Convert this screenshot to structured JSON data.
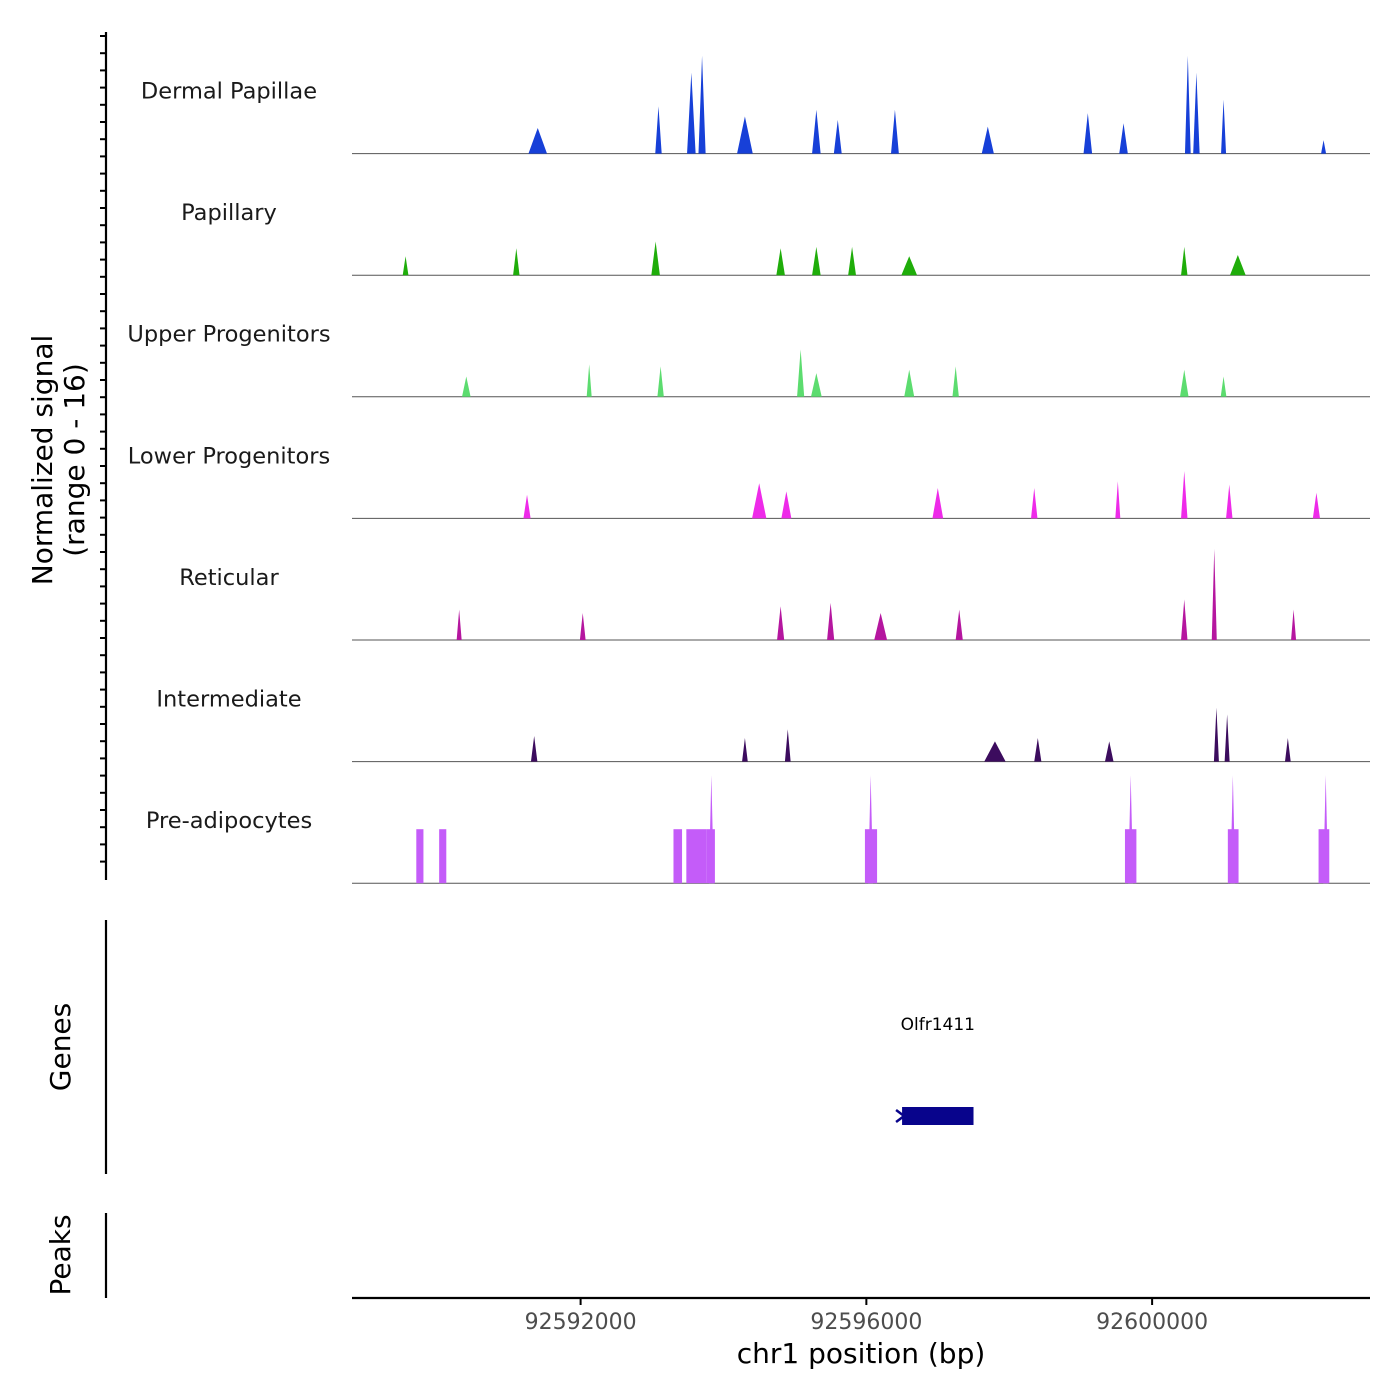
{
  "chart_data": {
    "type": "area",
    "title": "",
    "ylabel_line1": "Normalized signal",
    "ylabel_line2": "(range 0 - 16)",
    "xlabel": "chr1 position (bp)",
    "signal_range": [
      0,
      16
    ],
    "xlim": [
      92588800,
      92603050
    ],
    "xticks": [
      92592000,
      92596000,
      92600000
    ],
    "xtick_labels": [
      "92592000",
      "92596000",
      "92600000"
    ],
    "tracks": [
      {
        "name": "Dermal Papillae",
        "color": "#1740d8",
        "peaks": [
          {
            "center": 92591400,
            "width": 260,
            "height": 3.8
          },
          {
            "center": 92593090,
            "width": 90,
            "height": 7.0
          },
          {
            "center": 92593550,
            "width": 120,
            "height": 12.0
          },
          {
            "center": 92593700,
            "width": 100,
            "height": 14.5
          },
          {
            "center": 92594300,
            "width": 220,
            "height": 5.5
          },
          {
            "center": 92595300,
            "width": 120,
            "height": 6.5
          },
          {
            "center": 92595600,
            "width": 110,
            "height": 5.0
          },
          {
            "center": 92596400,
            "width": 110,
            "height": 6.5
          },
          {
            "center": 92597700,
            "width": 170,
            "height": 4.0
          },
          {
            "center": 92599100,
            "width": 120,
            "height": 6.0
          },
          {
            "center": 92599600,
            "width": 120,
            "height": 4.5
          },
          {
            "center": 92600500,
            "width": 80,
            "height": 14.5
          },
          {
            "center": 92600620,
            "width": 90,
            "height": 12.0
          },
          {
            "center": 92601000,
            "width": 70,
            "height": 8.0
          },
          {
            "center": 92602400,
            "width": 30,
            "height": 2.0
          }
        ]
      },
      {
        "name": "Papillary",
        "color": "#1fad0a",
        "peaks": [
          {
            "center": 92589550,
            "width": 80,
            "height": 2.8
          },
          {
            "center": 92591100,
            "width": 90,
            "height": 4.0
          },
          {
            "center": 92593050,
            "width": 120,
            "height": 5.0
          },
          {
            "center": 92594800,
            "width": 120,
            "height": 4.0
          },
          {
            "center": 92595300,
            "width": 120,
            "height": 4.2
          },
          {
            "center": 92595800,
            "width": 110,
            "height": 4.2
          },
          {
            "center": 92596600,
            "width": 220,
            "height": 2.8
          },
          {
            "center": 92600450,
            "width": 90,
            "height": 4.2
          },
          {
            "center": 92601200,
            "width": 220,
            "height": 3.0
          }
        ]
      },
      {
        "name": "Upper Progenitors",
        "color": "#5cdc6f",
        "peaks": [
          {
            "center": 92590400,
            "width": 120,
            "height": 3.0
          },
          {
            "center": 92592120,
            "width": 70,
            "height": 4.8
          },
          {
            "center": 92593120,
            "width": 90,
            "height": 4.5
          },
          {
            "center": 92595080,
            "width": 100,
            "height": 7.0
          },
          {
            "center": 92595300,
            "width": 150,
            "height": 3.5
          },
          {
            "center": 92596600,
            "width": 140,
            "height": 4.0
          },
          {
            "center": 92597250,
            "width": 90,
            "height": 4.5
          },
          {
            "center": 92600450,
            "width": 120,
            "height": 4.0
          },
          {
            "center": 92601000,
            "width": 80,
            "height": 3.0
          }
        ]
      },
      {
        "name": "Lower Progenitors",
        "color": "#ee2ae9",
        "peaks": [
          {
            "center": 92591250,
            "width": 100,
            "height": 3.5
          },
          {
            "center": 92594500,
            "width": 200,
            "height": 5.2
          },
          {
            "center": 92594880,
            "width": 140,
            "height": 4.0
          },
          {
            "center": 92597000,
            "width": 150,
            "height": 4.5
          },
          {
            "center": 92598350,
            "width": 90,
            "height": 4.5
          },
          {
            "center": 92599520,
            "width": 60,
            "height": 5.5
          },
          {
            "center": 92600450,
            "width": 90,
            "height": 7.0
          },
          {
            "center": 92601080,
            "width": 90,
            "height": 5.0
          },
          {
            "center": 92602300,
            "width": 100,
            "height": 3.8
          }
        ]
      },
      {
        "name": "Reticular",
        "color": "#b5169f",
        "peaks": [
          {
            "center": 92590300,
            "width": 70,
            "height": 4.5
          },
          {
            "center": 92592030,
            "width": 80,
            "height": 4.0
          },
          {
            "center": 92594800,
            "width": 100,
            "height": 5.0
          },
          {
            "center": 92595500,
            "width": 100,
            "height": 5.5
          },
          {
            "center": 92596200,
            "width": 180,
            "height": 4.0
          },
          {
            "center": 92597300,
            "width": 100,
            "height": 4.5
          },
          {
            "center": 92600450,
            "width": 90,
            "height": 6.0
          },
          {
            "center": 92600870,
            "width": 70,
            "height": 13.5
          },
          {
            "center": 92601980,
            "width": 60,
            "height": 4.5
          }
        ]
      },
      {
        "name": "Intermediate",
        "color": "#3c0c5e",
        "peaks": [
          {
            "center": 92591350,
            "width": 90,
            "height": 3.8
          },
          {
            "center": 92594300,
            "width": 80,
            "height": 3.5
          },
          {
            "center": 92594900,
            "width": 80,
            "height": 4.8
          },
          {
            "center": 92597800,
            "width": 300,
            "height": 3.0
          },
          {
            "center": 92598400,
            "width": 100,
            "height": 3.5
          },
          {
            "center": 92599400,
            "width": 120,
            "height": 3.0
          },
          {
            "center": 92600900,
            "width": 70,
            "height": 8.0
          },
          {
            "center": 92601050,
            "width": 60,
            "height": 7.0
          },
          {
            "center": 92601900,
            "width": 80,
            "height": 3.5
          }
        ]
      },
      {
        "name": "Pre-adipocytes",
        "color": "#c45cf9",
        "peaks": [
          {
            "center": 92593830,
            "width": 60,
            "height": 16.0
          },
          {
            "center": 92596060,
            "width": 50,
            "height": 16.0
          },
          {
            "center": 92599700,
            "width": 50,
            "height": 16.0
          },
          {
            "center": 92601130,
            "width": 50,
            "height": 16.0
          },
          {
            "center": 92602430,
            "width": 50,
            "height": 16.0
          }
        ],
        "blocks": [
          {
            "start": 92589700,
            "end": 92589800,
            "height": 8.0
          },
          {
            "start": 92590020,
            "end": 92590120,
            "height": 8.0
          },
          {
            "start": 92593300,
            "end": 92593420,
            "height": 8.0
          },
          {
            "start": 92593480,
            "end": 92593760,
            "height": 8.0
          },
          {
            "start": 92593760,
            "end": 92593880,
            "height": 8.0
          },
          {
            "start": 92595980,
            "end": 92596150,
            "height": 8.0
          },
          {
            "start": 92599620,
            "end": 92599780,
            "height": 8.0
          },
          {
            "start": 92601060,
            "end": 92601210,
            "height": 8.0
          },
          {
            "start": 92602330,
            "end": 92602480,
            "height": 8.0
          }
        ]
      }
    ],
    "genes_panel": {
      "ylabel": "Genes",
      "genes": [
        {
          "name": "Olfr1411",
          "start": 92596500,
          "end": 92597500,
          "strand": "-",
          "color": "#08048c"
        }
      ]
    },
    "peaks_panel": {
      "ylabel": "Peaks",
      "peaks": []
    }
  }
}
